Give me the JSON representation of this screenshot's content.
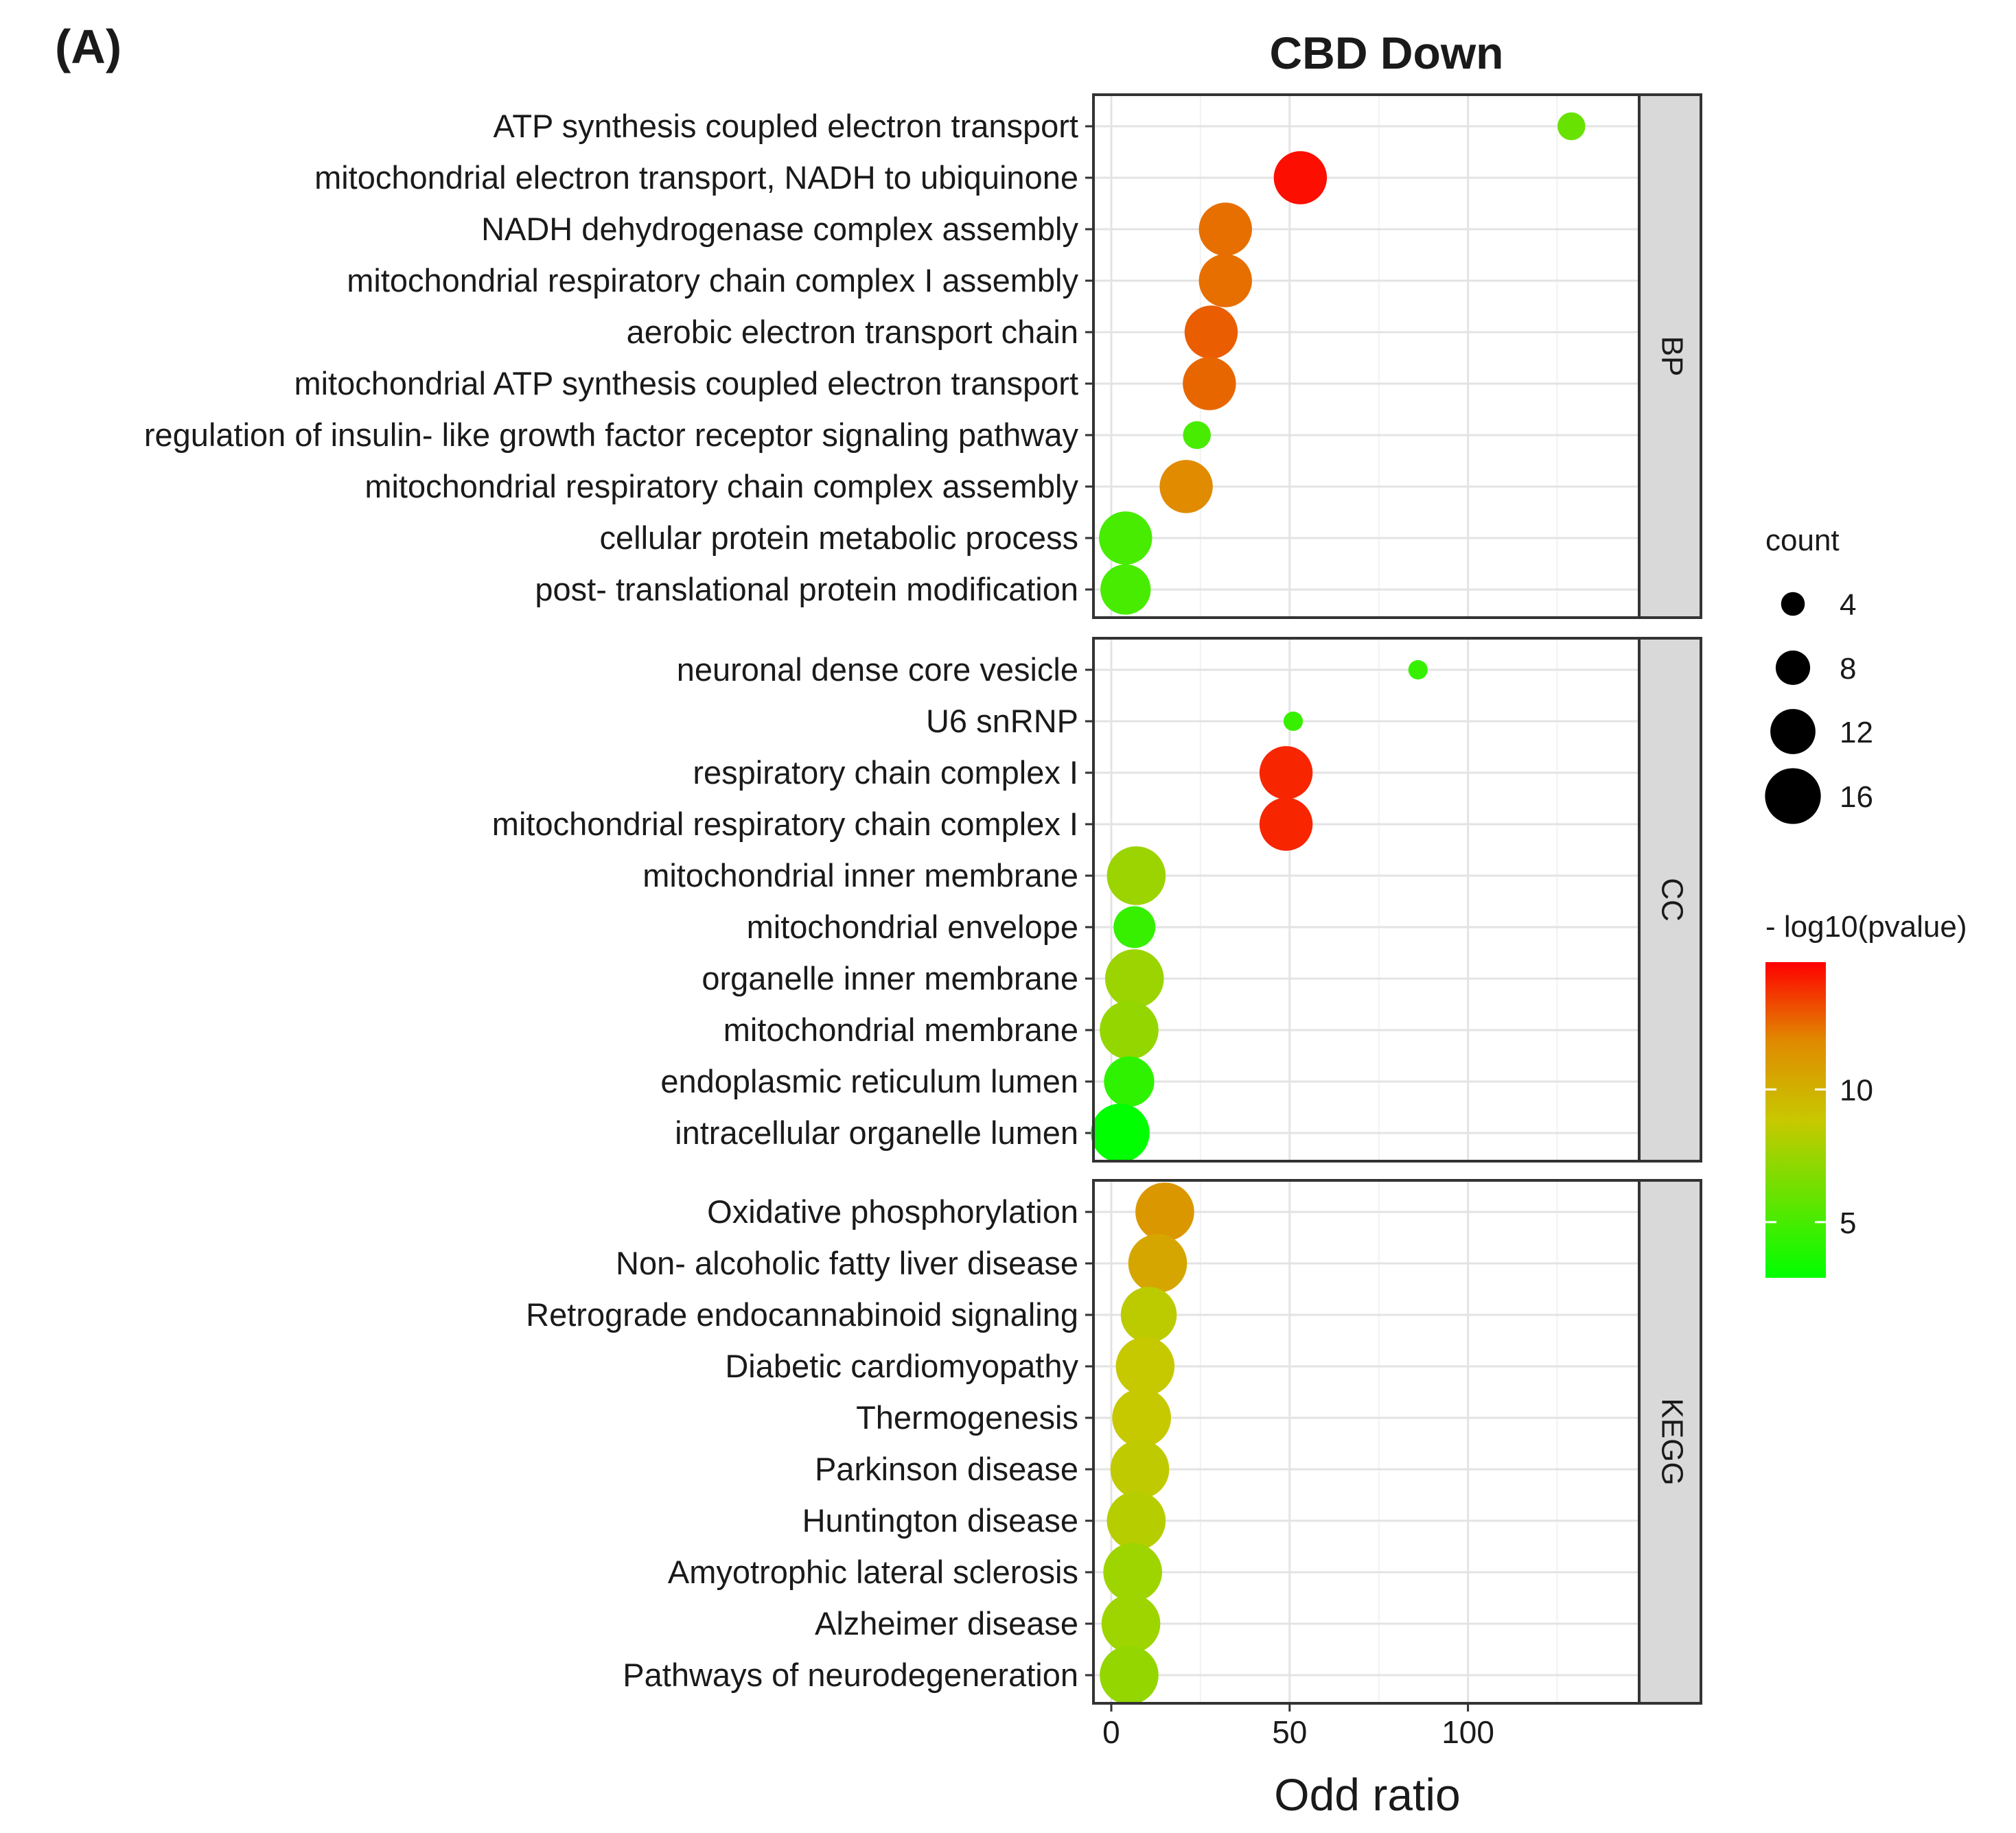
{
  "figure_label": "(A)",
  "chart_data": {
    "type": "scatter",
    "subtype": "dot-plot (faceted)",
    "title": "CBD Down",
    "xlabel": "Odd ratio",
    "ylabel": "",
    "xlim": [
      -5,
      148
    ],
    "xticks": [
      0,
      50,
      100
    ],
    "xtick_labels": [
      "0",
      "50",
      "100"
    ],
    "grid": true,
    "size_legend": {
      "title": "count",
      "values": [
        4,
        8,
        12,
        16
      ],
      "labels": [
        "4",
        "8",
        "12",
        "16"
      ]
    },
    "color_legend": {
      "title": "- log10(pvalue)",
      "range": [
        2.9,
        14.8
      ],
      "ticks": [
        5,
        10
      ],
      "tick_labels": [
        "5",
        "10"
      ],
      "low_color": "#00ff00",
      "high_color": "#ff0000"
    },
    "panels": [
      {
        "name": "BP",
        "terms": [
          {
            "label": "ATP synthesis coupled electron transport",
            "odds_ratio": 129,
            "count": 5,
            "neg_log10_p": 6.0
          },
          {
            "label": "mitochondrial electron transport, NADH to ubiquinone",
            "odds_ratio": 53,
            "count": 14,
            "neg_log10_p": 14.5
          },
          {
            "label": "NADH dehydrogenase complex assembly",
            "odds_ratio": 32,
            "count": 14,
            "neg_log10_p": 12.4
          },
          {
            "label": "mitochondrial respiratory chain complex I assembly",
            "odds_ratio": 32,
            "count": 14,
            "neg_log10_p": 12.4
          },
          {
            "label": "aerobic electron transport chain",
            "odds_ratio": 28,
            "count": 14,
            "neg_log10_p": 12.8
          },
          {
            "label": "mitochondrial ATP synthesis coupled electron transport",
            "odds_ratio": 27.5,
            "count": 14,
            "neg_log10_p": 12.6
          },
          {
            "label": "regulation of insulin- like growth factor receptor signaling pathway",
            "odds_ratio": 24,
            "count": 5,
            "neg_log10_p": 5.0
          },
          {
            "label": "mitochondrial respiratory chain complex assembly",
            "odds_ratio": 21,
            "count": 14,
            "neg_log10_p": 11.8
          },
          {
            "label": "cellular protein metabolic process",
            "odds_ratio": 4,
            "count": 14,
            "neg_log10_p": 5.0
          },
          {
            "label": "post- translational protein modification",
            "odds_ratio": 4,
            "count": 13,
            "neg_log10_p": 5.0
          }
        ]
      },
      {
        "name": "CC",
        "terms": [
          {
            "label": "neuronal dense core vesicle",
            "odds_ratio": 86,
            "count": 2,
            "neg_log10_p": 4.5
          },
          {
            "label": "U6 snRNP",
            "odds_ratio": 51,
            "count": 2,
            "neg_log10_p": 4.5
          },
          {
            "label": "respiratory chain complex I",
            "odds_ratio": 49,
            "count": 14,
            "neg_log10_p": 14.0
          },
          {
            "label": "mitochondrial respiratory chain complex I",
            "odds_ratio": 49,
            "count": 14,
            "neg_log10_p": 14.0
          },
          {
            "label": "mitochondrial inner membrane",
            "odds_ratio": 7,
            "count": 16,
            "neg_log10_p": 7.5
          },
          {
            "label": "mitochondrial envelope",
            "odds_ratio": 6.5,
            "count": 10,
            "neg_log10_p": 4.5
          },
          {
            "label": "organelle inner membrane",
            "odds_ratio": 6.5,
            "count": 16,
            "neg_log10_p": 7.5
          },
          {
            "label": "mitochondrial membrane",
            "odds_ratio": 5,
            "count": 16,
            "neg_log10_p": 7.3
          },
          {
            "label": "endoplasmic reticulum lumen",
            "odds_ratio": 5,
            "count": 13,
            "neg_log10_p": 4.3
          },
          {
            "label": "intracellular organelle lumen",
            "odds_ratio": 2.5,
            "count": 16,
            "neg_log10_p": 2.9
          }
        ]
      },
      {
        "name": "KEGG",
        "terms": [
          {
            "label": "Oxidative phosphorylation",
            "odds_ratio": 15,
            "count": 16,
            "neg_log10_p": 11.2
          },
          {
            "label": "Non- alcoholic fatty liver disease",
            "odds_ratio": 13,
            "count": 16,
            "neg_log10_p": 10.5
          },
          {
            "label": "Retrograde endocannabinoid signaling",
            "odds_ratio": 10.5,
            "count": 15,
            "neg_log10_p": 8.5
          },
          {
            "label": "Diabetic cardiomyopathy",
            "odds_ratio": 9.5,
            "count": 16,
            "neg_log10_p": 8.8
          },
          {
            "label": "Thermogenesis",
            "odds_ratio": 8.5,
            "count": 16,
            "neg_log10_p": 8.8
          },
          {
            "label": "Parkinson disease",
            "odds_ratio": 8,
            "count": 16,
            "neg_log10_p": 8.6
          },
          {
            "label": "Huntington disease",
            "odds_ratio": 7,
            "count": 16,
            "neg_log10_p": 8.3
          },
          {
            "label": "Amyotrophic lateral sclerosis",
            "odds_ratio": 6,
            "count": 16,
            "neg_log10_p": 7.6
          },
          {
            "label": "Alzheimer disease",
            "odds_ratio": 5.5,
            "count": 16,
            "neg_log10_p": 7.6
          },
          {
            "label": "Pathways of neurodegeneration",
            "odds_ratio": 5,
            "count": 16,
            "neg_log10_p": 7.3
          }
        ]
      }
    ]
  }
}
